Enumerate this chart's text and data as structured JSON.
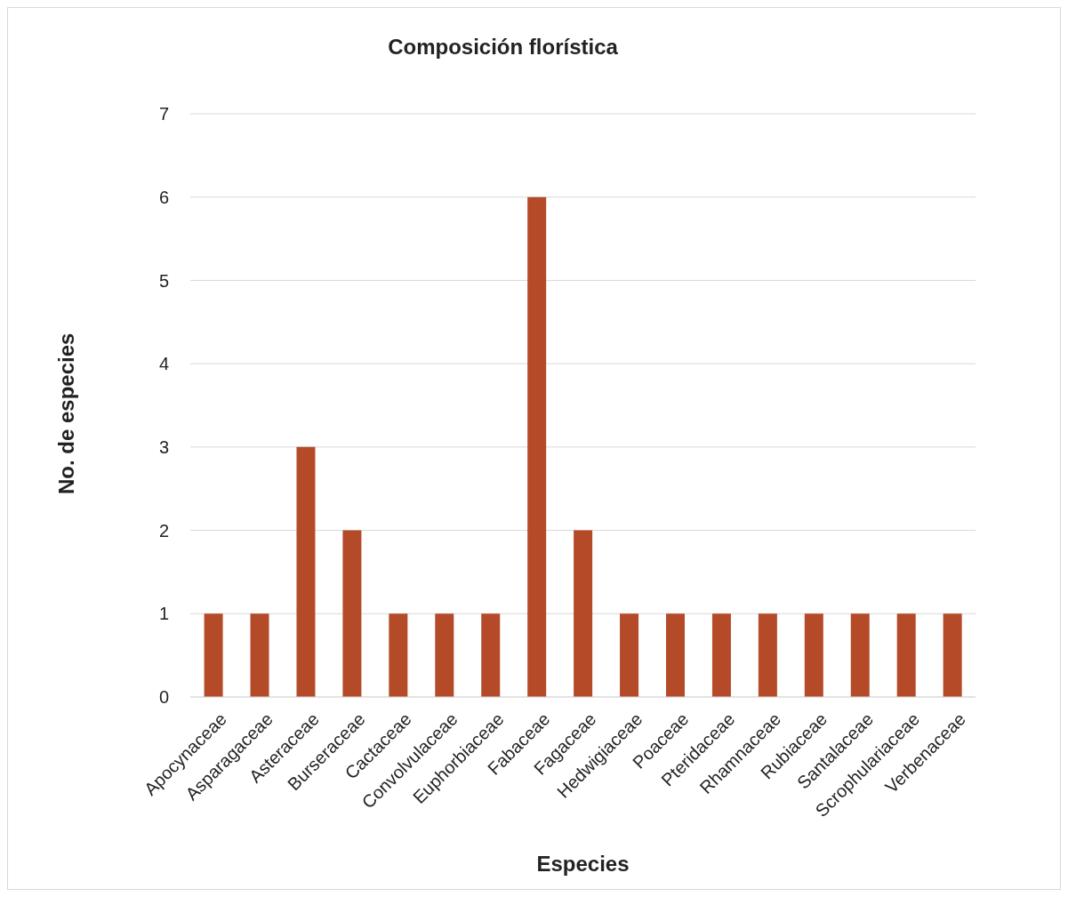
{
  "chart_data": {
    "type": "bar",
    "title": "Composición florística",
    "xlabel": "Especies",
    "ylabel": "No. de especies",
    "categories": [
      "Apocynaceae",
      "Asparagaceae",
      "Asteraceae",
      "Burseraceae",
      "Cactaceae",
      "Convolvulaceae",
      "Euphorbiaceae",
      "Fabaceae",
      "Fagaceae",
      "Hedwigiaceae",
      "Poaceae",
      "Pteridaceae",
      "Rhamnaceae",
      "Rubiaceae",
      "Santalaceae",
      "Scrophulariaceae",
      "Verbenaceae"
    ],
    "values": [
      1,
      1,
      3,
      2,
      1,
      1,
      1,
      6,
      2,
      1,
      1,
      1,
      1,
      1,
      1,
      1,
      1
    ],
    "color": "#b54a29",
    "ylim": [
      0,
      7
    ],
    "yticks": [
      0,
      1,
      2,
      3,
      4,
      5,
      6,
      7
    ],
    "grid": "y"
  }
}
